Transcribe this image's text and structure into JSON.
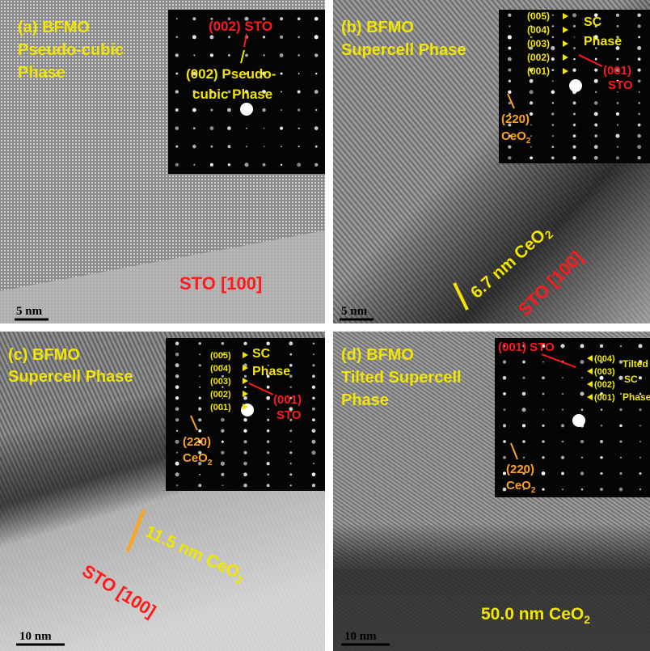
{
  "panels": [
    {
      "title": [
        "(a) BFMO",
        "Pseudo-cubic",
        "Phase"
      ],
      "inset": {
        "spot_label": "(002) STO",
        "phase_label": [
          "(002) Pseudo-",
          "cubic Phase"
        ]
      },
      "substrate": "STO [100]",
      "scale_bar": "5 nm"
    },
    {
      "title": [
        "(b) BFMO",
        "Supercell Phase"
      ],
      "inset": {
        "orders": [
          "(005)",
          "(004)",
          "(003)",
          "(002)",
          "(001)"
        ],
        "phase_label": [
          "SC",
          "Phase"
        ],
        "spot_label": [
          "(001)",
          "STO"
        ],
        "ceo2_label": {
          "index": "(220)",
          "text": "CeO",
          "sub": "2"
        }
      },
      "thickness": {
        "text": "6.7 nm CeO",
        "sub": "2"
      },
      "substrate": "STO [100]",
      "scale_bar": "5 nm"
    },
    {
      "title": [
        "(c) BFMO",
        "Supercell Phase"
      ],
      "inset": {
        "orders": [
          "(005)",
          "(004)",
          "(003)",
          "(002)",
          "(001)"
        ],
        "phase_label": [
          "SC",
          "Phase"
        ],
        "spot_label": [
          "(001)",
          "STO"
        ],
        "ceo2_label": {
          "index": "(220)",
          "text": "CeO",
          "sub": "2"
        }
      },
      "thickness": {
        "text": "11.5 nm CeO",
        "sub": "2"
      },
      "substrate": "STO [100]",
      "scale_bar": "10 nm"
    },
    {
      "title": [
        "(d) BFMO",
        "Tilted Supercell",
        "Phase"
      ],
      "inset": {
        "spot_label": "(001) STO",
        "orders": [
          "(004)",
          "(003)",
          "(002)",
          "(001)"
        ],
        "phase_label": [
          "Tilted",
          "SC",
          "Phase"
        ],
        "ceo2_label": {
          "index": "(220)",
          "text": "CeO",
          "sub": "2"
        }
      },
      "thickness": {
        "text": "50.0 nm CeO",
        "sub": "2"
      },
      "scale_bar": "10 nm"
    }
  ]
}
